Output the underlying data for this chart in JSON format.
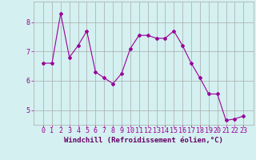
{
  "x": [
    0,
    1,
    2,
    3,
    4,
    5,
    6,
    7,
    8,
    9,
    10,
    11,
    12,
    13,
    14,
    15,
    16,
    17,
    18,
    19,
    20,
    21,
    22,
    23
  ],
  "y": [
    6.6,
    6.6,
    8.3,
    6.8,
    7.2,
    7.7,
    6.3,
    6.1,
    5.9,
    6.25,
    7.1,
    7.55,
    7.55,
    7.45,
    7.45,
    7.7,
    7.2,
    6.6,
    6.1,
    5.55,
    5.55,
    4.65,
    4.7,
    4.8
  ],
  "line_color": "#990099",
  "marker": "D",
  "marker_size": 2,
  "bg_color": "#d4f0f0",
  "grid_color": "#aaaaaa",
  "xlabel": "Windchill (Refroidissement éolien,°C)",
  "xlabel_color": "#660066",
  "xlabel_fontsize": 6.5,
  "tick_color": "#990099",
  "tick_fontsize": 6,
  "ylim": [
    4.5,
    8.7
  ],
  "yticks": [
    5,
    6,
    7,
    8
  ],
  "xticks": [
    0,
    1,
    2,
    3,
    4,
    5,
    6,
    7,
    8,
    9,
    10,
    11,
    12,
    13,
    14,
    15,
    16,
    17,
    18,
    19,
    20,
    21,
    22,
    23
  ]
}
